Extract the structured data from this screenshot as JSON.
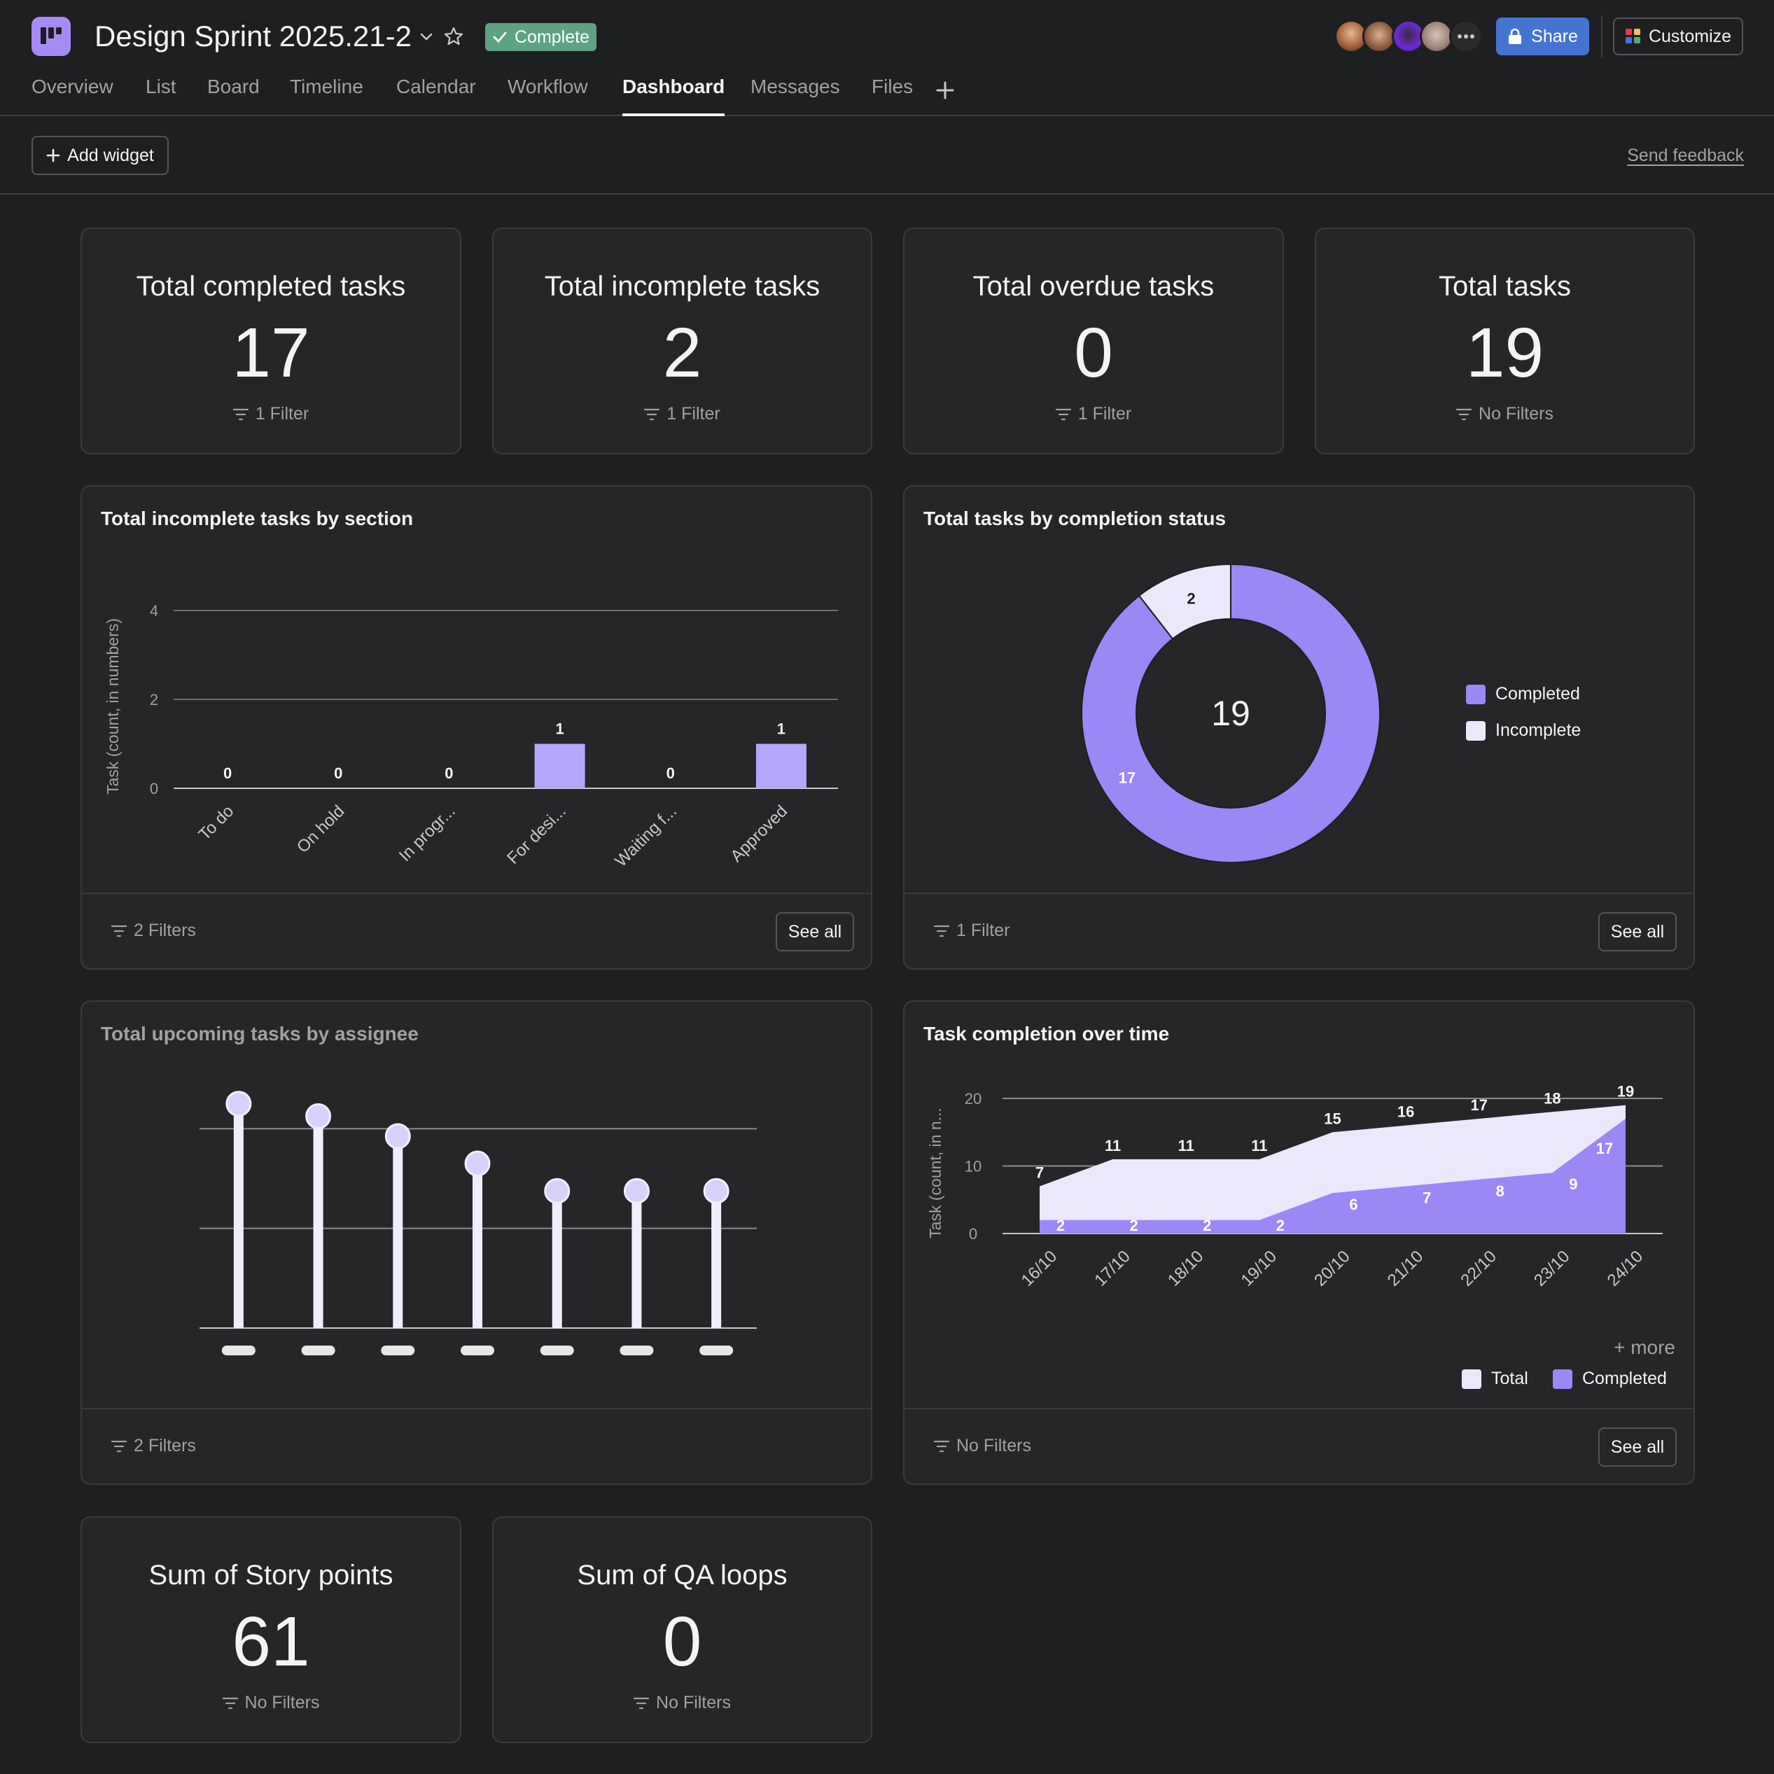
{
  "header": {
    "project_title": "Design Sprint 2025.21-2",
    "status_label": "Complete",
    "share_label": "Share",
    "customize_label": "Customize",
    "colors": {
      "status": "#5da283",
      "share": "#4573d2",
      "accent": "#a78bf5"
    }
  },
  "tabs": [
    {
      "label": "Overview"
    },
    {
      "label": "List"
    },
    {
      "label": "Board"
    },
    {
      "label": "Timeline"
    },
    {
      "label": "Calendar"
    },
    {
      "label": "Workflow"
    },
    {
      "label": "Dashboard",
      "active": true
    },
    {
      "label": "Messages"
    },
    {
      "label": "Files"
    }
  ],
  "toolbar": {
    "add_widget_label": "Add widget",
    "feedback_label": "Send feedback"
  },
  "stats": [
    {
      "title": "Total completed tasks",
      "value": "17",
      "filter": "1 Filter"
    },
    {
      "title": "Total incomplete tasks",
      "value": "2",
      "filter": "1 Filter"
    },
    {
      "title": "Total overdue tasks",
      "value": "0",
      "filter": "1 Filter"
    },
    {
      "title": "Total tasks",
      "value": "19",
      "filter": "No Filters"
    },
    {
      "title": "Sum of Story points",
      "value": "61",
      "filter": "No Filters"
    },
    {
      "title": "Sum of QA loops",
      "value": "0",
      "filter": "No Filters"
    }
  ],
  "widgets": {
    "by_section": {
      "title": "Total incomplete tasks by section",
      "filter": "2 Filters",
      "see_all": "See all"
    },
    "by_status": {
      "title": "Total tasks by completion status",
      "filter": "1 Filter",
      "see_all": "See all"
    },
    "by_assignee": {
      "title": "Total upcoming tasks by assignee",
      "filter": "2 Filters"
    },
    "over_time": {
      "title": "Task completion over time",
      "filter": "No Filters",
      "see_all": "See all",
      "more_label": "+ more"
    }
  },
  "chart_data": [
    {
      "type": "bar",
      "title": "Total incomplete tasks by section",
      "categories": [
        "To do",
        "On hold",
        "In progr...",
        "For desi...",
        "Waiting f...",
        "Approved"
      ],
      "values": [
        0,
        0,
        0,
        1,
        0,
        1
      ],
      "ylabel": "Task (count, in numbers)",
      "yticks": [
        0,
        2,
        4
      ],
      "ylim": [
        0,
        4
      ],
      "color": "#b5a6fb"
    },
    {
      "type": "pie",
      "title": "Total tasks by completion status",
      "center_label": "19",
      "slices": [
        {
          "name": "Completed",
          "value": 17,
          "color": "#9b87f5"
        },
        {
          "name": "Incomplete",
          "value": 2,
          "color": "#ebe8fb"
        }
      ],
      "legend_position": "right"
    },
    {
      "type": "bar",
      "title": "Total upcoming tasks by assignee",
      "subtype": "lollipop",
      "values": [
        9,
        8.5,
        7.7,
        6.6,
        5.5,
        5.5,
        5.5
      ],
      "ylim": [
        0,
        10
      ],
      "grid": true,
      "note": "",
      "color": "#f0eefc"
    },
    {
      "type": "area",
      "title": "Task completion over time",
      "x": [
        "16/10",
        "17/10",
        "18/10",
        "19/10",
        "20/10",
        "21/10",
        "22/10",
        "23/10",
        "24/10"
      ],
      "series": [
        {
          "name": "Total",
          "values": [
            7,
            11,
            11,
            11,
            15,
            16,
            17,
            18,
            19
          ],
          "color": "#ebe8fb"
        },
        {
          "name": "Completed",
          "values": [
            2,
            2,
            2,
            2,
            6,
            7,
            8,
            9,
            17
          ],
          "color": "#9b87f5"
        }
      ],
      "ylabel": "Task (count, in n...",
      "yticks": [
        0,
        10,
        20
      ],
      "ylim": [
        0,
        20
      ],
      "legend_position": "bottom-right"
    }
  ]
}
